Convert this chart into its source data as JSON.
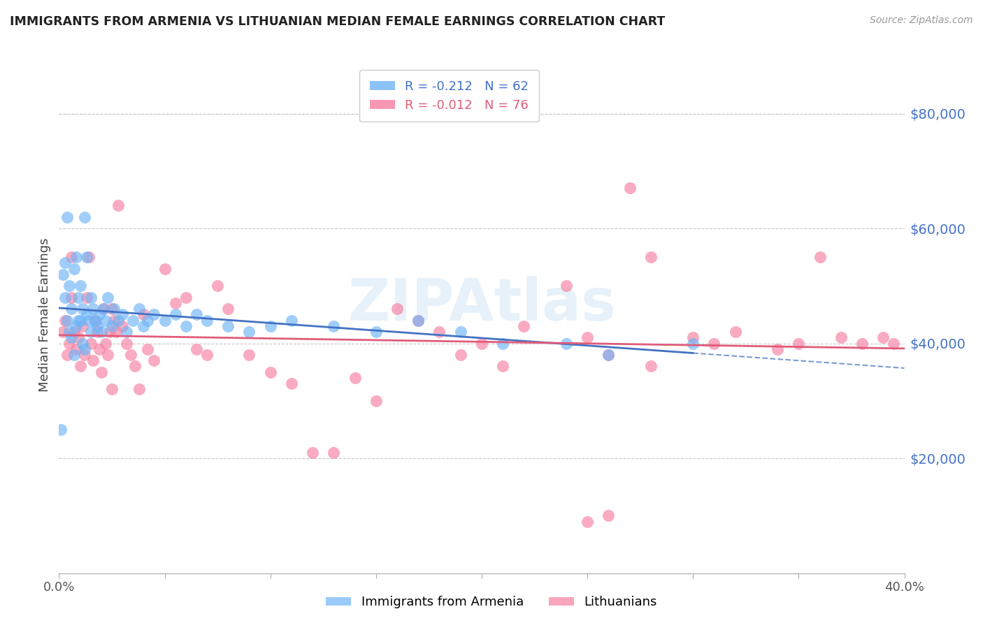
{
  "title": "IMMIGRANTS FROM ARMENIA VS LITHUANIAN MEDIAN FEMALE EARNINGS CORRELATION CHART",
  "source": "Source: ZipAtlas.com",
  "ylabel": "Median Female Earnings",
  "ytick_values": [
    20000,
    40000,
    60000,
    80000
  ],
  "ylim": [
    0,
    90000
  ],
  "xlim": [
    0.0,
    0.4
  ],
  "xtick_values": [
    0.0,
    0.05,
    0.1,
    0.15,
    0.2,
    0.25,
    0.3,
    0.35,
    0.4
  ],
  "legend_entries": [
    {
      "label": "Immigrants from Armenia",
      "color": "#6eb4f7",
      "R": "-0.212",
      "N": "62"
    },
    {
      "label": "Lithuanians",
      "color": "#f77fa0",
      "R": "-0.012",
      "N": "76"
    }
  ],
  "armenia_scatter_x": [
    0.001,
    0.002,
    0.003,
    0.003,
    0.004,
    0.004,
    0.005,
    0.005,
    0.006,
    0.006,
    0.007,
    0.007,
    0.008,
    0.008,
    0.009,
    0.009,
    0.01,
    0.01,
    0.011,
    0.011,
    0.012,
    0.012,
    0.013,
    0.013,
    0.014,
    0.015,
    0.015,
    0.016,
    0.017,
    0.018,
    0.019,
    0.02,
    0.021,
    0.022,
    0.023,
    0.025,
    0.026,
    0.028,
    0.03,
    0.032,
    0.035,
    0.038,
    0.04,
    0.042,
    0.045,
    0.05,
    0.055,
    0.06,
    0.065,
    0.07,
    0.08,
    0.09,
    0.1,
    0.11,
    0.13,
    0.15,
    0.17,
    0.19,
    0.21,
    0.24,
    0.26,
    0.3
  ],
  "armenia_scatter_y": [
    25000,
    52000,
    48000,
    54000,
    44000,
    62000,
    50000,
    42000,
    46000,
    41000,
    53000,
    38000,
    55000,
    43000,
    44000,
    48000,
    50000,
    44000,
    46000,
    40000,
    62000,
    39000,
    55000,
    45000,
    44000,
    48000,
    42000,
    46000,
    44000,
    43000,
    45000,
    42000,
    46000,
    44000,
    48000,
    43000,
    46000,
    44000,
    45000,
    42000,
    44000,
    46000,
    43000,
    44000,
    45000,
    44000,
    45000,
    43000,
    45000,
    44000,
    43000,
    42000,
    43000,
    44000,
    43000,
    42000,
    44000,
    42000,
    40000,
    40000,
    38000,
    40000
  ],
  "lithuanian_scatter_x": [
    0.002,
    0.003,
    0.004,
    0.005,
    0.006,
    0.006,
    0.007,
    0.008,
    0.009,
    0.01,
    0.011,
    0.012,
    0.013,
    0.014,
    0.015,
    0.016,
    0.017,
    0.018,
    0.019,
    0.02,
    0.021,
    0.022,
    0.023,
    0.024,
    0.025,
    0.026,
    0.027,
    0.028,
    0.03,
    0.032,
    0.034,
    0.036,
    0.038,
    0.04,
    0.042,
    0.045,
    0.05,
    0.055,
    0.06,
    0.065,
    0.07,
    0.075,
    0.08,
    0.09,
    0.1,
    0.11,
    0.12,
    0.13,
    0.14,
    0.15,
    0.16,
    0.17,
    0.18,
    0.19,
    0.2,
    0.21,
    0.22,
    0.24,
    0.25,
    0.26,
    0.27,
    0.28,
    0.3,
    0.31,
    0.32,
    0.34,
    0.35,
    0.36,
    0.37,
    0.38,
    0.39,
    0.395,
    0.025,
    0.28,
    0.25,
    0.26
  ],
  "lithuanian_scatter_y": [
    42000,
    44000,
    38000,
    40000,
    48000,
    55000,
    42000,
    39000,
    41000,
    36000,
    43000,
    38000,
    48000,
    55000,
    40000,
    37000,
    44000,
    42000,
    39000,
    35000,
    46000,
    40000,
    38000,
    42000,
    46000,
    44000,
    42000,
    64000,
    43000,
    40000,
    38000,
    36000,
    32000,
    45000,
    39000,
    37000,
    53000,
    47000,
    48000,
    39000,
    38000,
    50000,
    46000,
    38000,
    35000,
    33000,
    21000,
    21000,
    34000,
    30000,
    46000,
    44000,
    42000,
    38000,
    40000,
    36000,
    43000,
    50000,
    41000,
    38000,
    67000,
    55000,
    41000,
    40000,
    42000,
    39000,
    40000,
    55000,
    41000,
    40000,
    41000,
    40000,
    32000,
    36000,
    9000,
    10000
  ],
  "armenia_line_color": "#4472c4",
  "lithuanian_line_color": "#e05c7a",
  "armenia_dot_color": "#6eb4f7",
  "lithuanian_dot_color": "#f77fa0",
  "watermark": "ZIPAtlas",
  "background_color": "#ffffff",
  "grid_color": "#c8c8c8",
  "title_color": "#222222",
  "ytick_color": "#4472c4",
  "xtick_color": "#555555"
}
